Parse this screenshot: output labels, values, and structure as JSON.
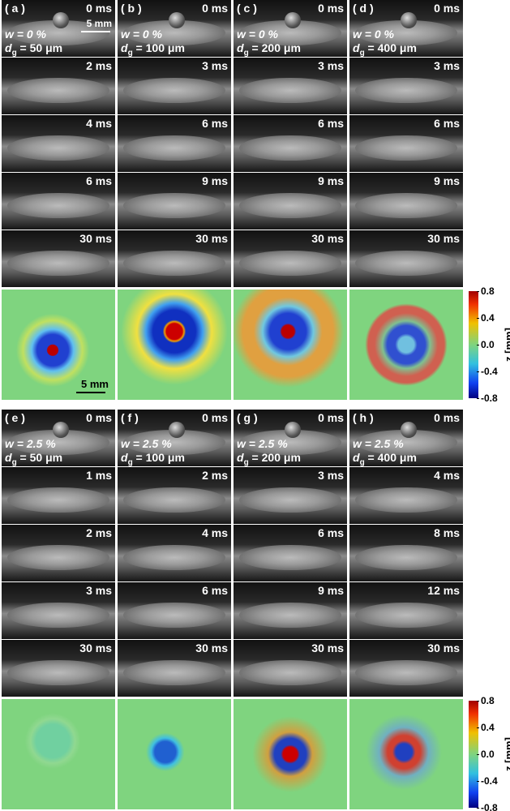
{
  "figure": {
    "panels": [
      {
        "scale_bar_frame": "5 mm",
        "scale_bar_map": "5 mm",
        "colorbar": {
          "ylim": [
            -0.8,
            0.8
          ],
          "ticks": [
            0.8,
            0.4,
            {
              "value": 0,
              "label": "0.0"
            },
            -0.4,
            -0.8
          ],
          "label": "z [mm]"
        },
        "columns": [
          {
            "label": "( a )",
            "w_label": "w = 0 %",
            "d_symbol": "d",
            "d_sub": "g",
            "d_text": " = 50 μm",
            "times": [
              "0 ms",
              "2 ms",
              "4 ms",
              "6 ms",
              "30 ms"
            ]
          },
          {
            "label": "( b )",
            "w_label": "w = 0 %",
            "d_symbol": "d",
            "d_sub": "g",
            "d_text": " = 100 μm",
            "times": [
              "0 ms",
              "3 ms",
              "6 ms",
              "9 ms",
              "30 ms"
            ]
          },
          {
            "label": "( c )",
            "w_label": "w = 0 %",
            "d_symbol": "d",
            "d_sub": "g",
            "d_text": " = 200 μm",
            "times": [
              "0 ms",
              "3 ms",
              "6 ms",
              "9 ms",
              "30 ms"
            ]
          },
          {
            "label": "( d )",
            "w_label": "w = 0 %",
            "d_symbol": "d",
            "d_sub": "g",
            "d_text": " = 400 μm",
            "times": [
              "0 ms",
              "3 ms",
              "6 ms",
              "9 ms",
              "30 ms"
            ]
          }
        ]
      },
      {
        "colorbar": {
          "ylim": [
            -0.8,
            0.8
          ],
          "ticks": [
            0.8,
            0.4,
            {
              "value": 0,
              "label": "0.0"
            },
            -0.4,
            -0.8
          ],
          "label": "z [mm]"
        },
        "columns": [
          {
            "label": "( e )",
            "w_label": "w = 2.5 %",
            "d_symbol": "d",
            "d_sub": "g",
            "d_text": " = 50 μm",
            "times": [
              "0 ms",
              "1 ms",
              "2 ms",
              "3 ms",
              "30 ms"
            ]
          },
          {
            "label": "( f )",
            "w_label": "w = 2.5 %",
            "d_symbol": "d",
            "d_sub": "g",
            "d_text": " = 100 μm",
            "times": [
              "0 ms",
              "2 ms",
              "4 ms",
              "6 ms",
              "30 ms"
            ]
          },
          {
            "label": "( g )",
            "w_label": "w = 2.5 %",
            "d_symbol": "d",
            "d_sub": "g",
            "d_text": " = 200 μm",
            "times": [
              "0 ms",
              "3 ms",
              "6 ms",
              "9 ms",
              "30 ms"
            ]
          },
          {
            "label": "( h )",
            "w_label": "w = 2.5 %",
            "d_symbol": "d",
            "d_sub": "g",
            "d_text": " = 400 μm",
            "times": [
              "0 ms",
              "4 ms",
              "8 ms",
              "12 ms",
              "30 ms"
            ]
          }
        ]
      }
    ]
  }
}
